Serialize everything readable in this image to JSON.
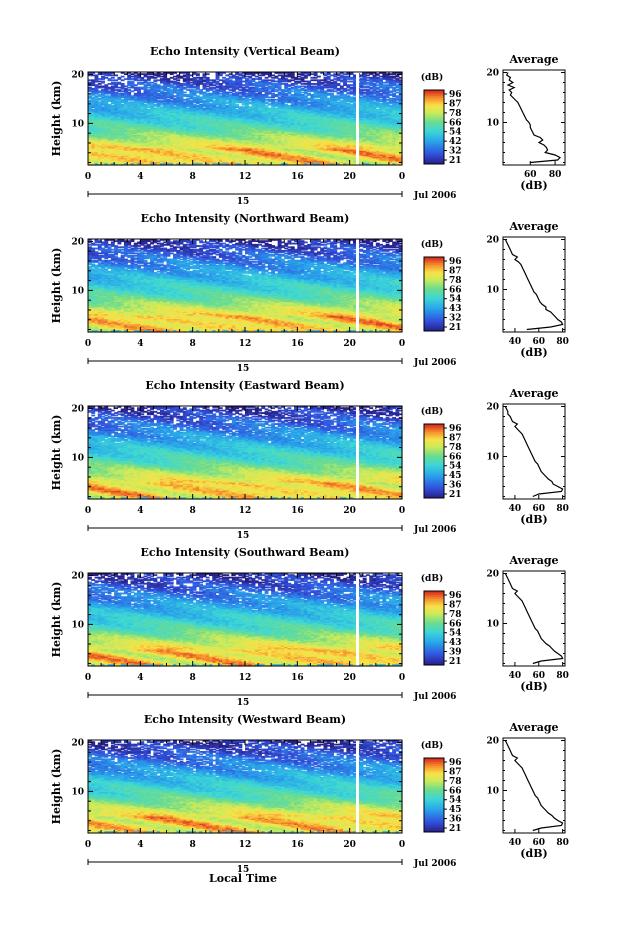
{
  "figure": {
    "xlabel": "Local Time",
    "date_label": "Jul 2006",
    "day_label": "15",
    "colorbar_unit": "(dB)",
    "colorbar_ticks": [
      [
        "96",
        "87",
        "78",
        "66",
        "54",
        "42",
        "32",
        "21"
      ],
      [
        "96",
        "87",
        "78",
        "66",
        "54",
        "43",
        "32",
        "21"
      ],
      [
        "96",
        "87",
        "78",
        "66",
        "54",
        "45",
        "36",
        "21"
      ],
      [
        "96",
        "87",
        "78",
        "66",
        "54",
        "43",
        "39",
        "21"
      ],
      [
        "96",
        "87",
        "78",
        "66",
        "54",
        "45",
        "36",
        "21"
      ]
    ]
  },
  "chart_data": [
    {
      "type": "heatmap",
      "title": "Echo Intensity (Vertical Beam)",
      "xlabel": "",
      "ylabel": "Height (km)",
      "x_ticks": [
        "0",
        "4",
        "8",
        "12",
        "16",
        "20",
        "0"
      ],
      "xlim": [
        0,
        24
      ],
      "y_ticks": [
        "10",
        "20"
      ],
      "ylim": [
        1.5,
        20.5
      ],
      "gap_hour": 20.6,
      "profile": {
        "title": "Average",
        "xlabel": "(dB)",
        "x_ticks": [
          "60",
          "80"
        ],
        "xlim": [
          38,
          88
        ],
        "y_ticks": [
          "10",
          "20"
        ],
        "ylim": [
          1.5,
          20.5
        ],
        "height_km": [
          2,
          2.5,
          3,
          3.5,
          4,
          4.5,
          5,
          5.5,
          6,
          6.5,
          7,
          7.5,
          8,
          8.5,
          9,
          9.5,
          10,
          10.5,
          11,
          11.5,
          12,
          12.5,
          13,
          13.5,
          14,
          14.5,
          15,
          15.5,
          16,
          16.5,
          17,
          17.5,
          18,
          18.5,
          19,
          19.5,
          20
        ],
        "values_db": [
          60,
          82,
          84,
          80,
          72,
          74,
          73,
          71,
          67,
          70,
          68,
          63,
          62,
          61,
          60,
          60,
          59,
          57,
          56,
          55,
          54,
          53,
          52,
          51,
          50,
          48,
          46,
          44,
          45,
          43,
          47,
          42,
          46,
          43,
          44,
          41,
          42
        ]
      }
    },
    {
      "type": "heatmap",
      "title": "Echo Intensity (Northward Beam)",
      "xlabel": "",
      "ylabel": "Height (km)",
      "x_ticks": [
        "0",
        "4",
        "8",
        "12",
        "16",
        "20",
        "0"
      ],
      "xlim": [
        0,
        24
      ],
      "y_ticks": [
        "10",
        "20"
      ],
      "ylim": [
        1.5,
        20.5
      ],
      "gap_hour": 20.6,
      "profile": {
        "title": "Average",
        "xlabel": "(dB)",
        "x_ticks": [
          "40",
          "60",
          "80"
        ],
        "xlim": [
          30,
          82
        ],
        "y_ticks": [
          "10",
          "20"
        ],
        "ylim": [
          1.5,
          20.5
        ],
        "height_km": [
          2,
          2.5,
          3,
          3.5,
          4,
          4.5,
          5,
          5.5,
          6,
          6.5,
          7,
          7.5,
          8,
          8.5,
          9,
          9.5,
          10,
          10.5,
          11,
          11.5,
          12,
          12.5,
          13,
          13.5,
          14,
          14.5,
          15,
          15.5,
          16,
          16.5,
          17,
          17.5,
          18,
          18.5,
          19,
          19.5,
          20
        ],
        "values_db": [
          50,
          70,
          80,
          79,
          76,
          74,
          72,
          70,
          66,
          66,
          63,
          61,
          60,
          59,
          58,
          56,
          55,
          54,
          53,
          52,
          51,
          50,
          49,
          48,
          47,
          46,
          45,
          43,
          40,
          42,
          38,
          37,
          36,
          35,
          34,
          33,
          32
        ]
      }
    },
    {
      "type": "heatmap",
      "title": "Echo Intensity (Eastward Beam)",
      "xlabel": "",
      "ylabel": "Height (km)",
      "x_ticks": [
        "0",
        "4",
        "8",
        "12",
        "16",
        "20",
        "0"
      ],
      "xlim": [
        0,
        24
      ],
      "y_ticks": [
        "10",
        "20"
      ],
      "ylim": [
        1.5,
        20.5
      ],
      "gap_hour": 20.6,
      "profile": {
        "title": "Average",
        "xlabel": "(dB)",
        "x_ticks": [
          "40",
          "60",
          "80"
        ],
        "xlim": [
          30,
          82
        ],
        "y_ticks": [
          "10",
          "20"
        ],
        "ylim": [
          1.5,
          20.5
        ],
        "height_km": [
          2,
          2.5,
          3,
          3.5,
          4,
          4.5,
          5,
          5.5,
          6,
          6.5,
          7,
          7.5,
          8,
          8.5,
          9,
          9.5,
          10,
          10.5,
          11,
          11.5,
          12,
          12.5,
          13,
          13.5,
          14,
          14.5,
          15,
          15.5,
          16,
          16.5,
          17,
          17.5,
          18,
          18.5,
          19,
          19.5,
          20
        ],
        "values_db": [
          55,
          60,
          79,
          80,
          76,
          72,
          71,
          68,
          66,
          64,
          62,
          61,
          60,
          59,
          57,
          56,
          55,
          54,
          53,
          52,
          51,
          50,
          49,
          48,
          47,
          46,
          44,
          42,
          40,
          42,
          38,
          37,
          36,
          34,
          34,
          33,
          32
        ]
      }
    },
    {
      "type": "heatmap",
      "title": "Echo Intensity (Southward Beam)",
      "xlabel": "",
      "ylabel": "Height (km)",
      "x_ticks": [
        "0",
        "4",
        "8",
        "12",
        "16",
        "20",
        "0"
      ],
      "xlim": [
        0,
        24
      ],
      "y_ticks": [
        "10",
        "20"
      ],
      "ylim": [
        1.5,
        20.5
      ],
      "gap_hour": 20.6,
      "profile": {
        "title": "Average",
        "xlabel": "(dB)",
        "x_ticks": [
          "40",
          "60",
          "80"
        ],
        "xlim": [
          30,
          82
        ],
        "y_ticks": [
          "10",
          "20"
        ],
        "ylim": [
          1.5,
          20.5
        ],
        "height_km": [
          2,
          2.5,
          3,
          3.5,
          4,
          4.5,
          5,
          5.5,
          6,
          6.5,
          7,
          7.5,
          8,
          8.5,
          9,
          9.5,
          10,
          10.5,
          11,
          11.5,
          12,
          12.5,
          13,
          13.5,
          14,
          14.5,
          15,
          15.5,
          16,
          16.5,
          17,
          17.5,
          18,
          18.5,
          19,
          19.5,
          20
        ],
        "values_db": [
          55,
          62,
          80,
          79,
          76,
          73,
          71,
          69,
          66,
          64,
          62,
          61,
          60,
          59,
          57,
          56,
          55,
          54,
          53,
          52,
          51,
          50,
          49,
          48,
          47,
          46,
          44,
          42,
          40,
          42,
          38,
          37,
          36,
          35,
          34,
          33,
          32
        ]
      }
    },
    {
      "type": "heatmap",
      "title": "Echo Intensity (Westward Beam)",
      "xlabel": "Local Time",
      "ylabel": "Height (km)",
      "x_ticks": [
        "0",
        "4",
        "8",
        "12",
        "16",
        "20",
        "0"
      ],
      "xlim": [
        0,
        24
      ],
      "y_ticks": [
        "10",
        "20"
      ],
      "ylim": [
        1.5,
        20.5
      ],
      "gap_hour": 20.6,
      "profile": {
        "title": "Average",
        "xlabel": "(dB)",
        "x_ticks": [
          "40",
          "60",
          "80"
        ],
        "xlim": [
          30,
          82
        ],
        "y_ticks": [
          "10",
          "20"
        ],
        "ylim": [
          1.5,
          20.5
        ],
        "height_km": [
          2,
          2.5,
          3,
          3.5,
          4,
          4.5,
          5,
          5.5,
          6,
          6.5,
          7,
          7.5,
          8,
          8.5,
          9,
          9.5,
          10,
          10.5,
          11,
          11.5,
          12,
          12.5,
          13,
          13.5,
          14,
          14.5,
          15,
          15.5,
          16,
          16.5,
          17,
          17.5,
          18,
          18.5,
          19,
          19.5,
          20
        ],
        "values_db": [
          55,
          62,
          79,
          80,
          76,
          73,
          71,
          68,
          66,
          64,
          62,
          61,
          60,
          59,
          57,
          56,
          55,
          54,
          53,
          52,
          51,
          50,
          49,
          48,
          47,
          46,
          44,
          42,
          40,
          42,
          38,
          37,
          36,
          35,
          34,
          33,
          32
        ]
      }
    }
  ]
}
